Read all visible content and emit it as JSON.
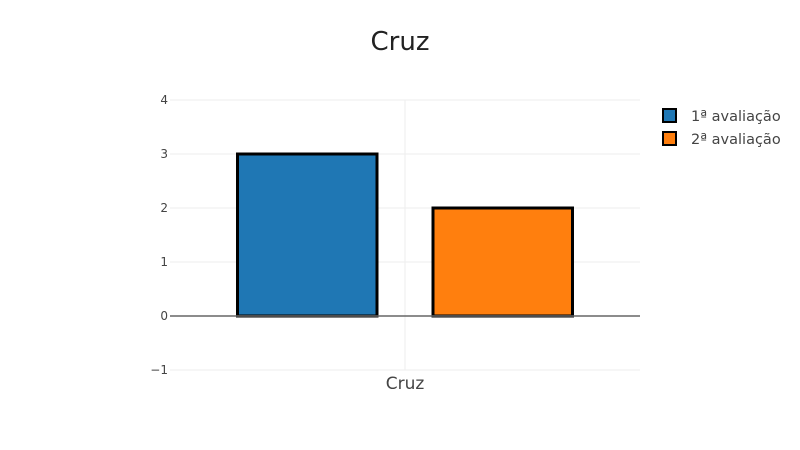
{
  "chart_data": {
    "type": "bar",
    "title": "Cruz",
    "categories": [
      "Cruz"
    ],
    "series": [
      {
        "name": "1ª avaliação",
        "values": [
          3
        ],
        "color": "#1f77b4"
      },
      {
        "name": "2ª avaliação",
        "values": [
          2
        ],
        "color": "#ff7f0e"
      }
    ],
    "ylim": [
      -1,
      4
    ],
    "yticks": [
      -1,
      0,
      1,
      2,
      3,
      4
    ],
    "ytick_labels": [
      "−1",
      "0",
      "1",
      "2",
      "3",
      "4"
    ],
    "xlabel": "",
    "ylabel": "",
    "grid": true,
    "bar_outline_color": "#000000",
    "legend_position": "top-right"
  }
}
